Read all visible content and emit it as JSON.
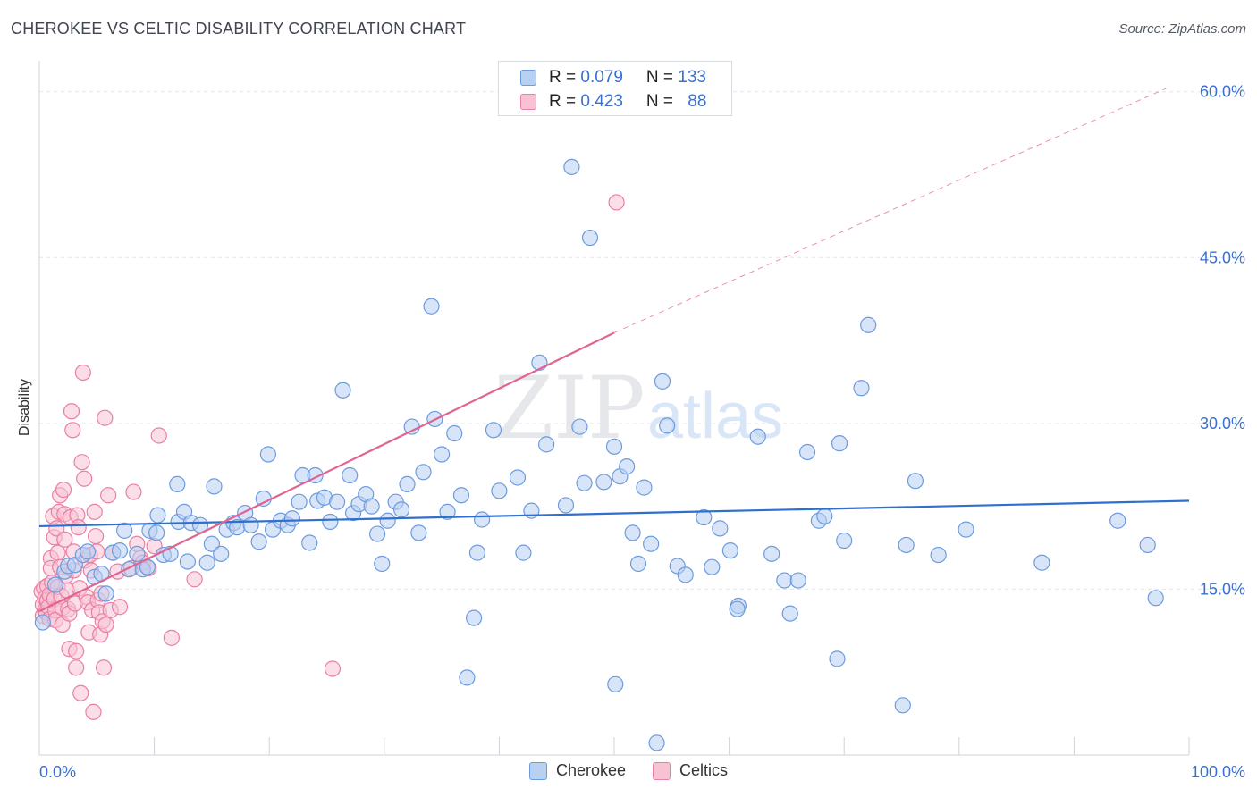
{
  "header": {
    "title": "CHEROKEE VS CELTIC DISABILITY CORRELATION CHART",
    "source": "Source: ZipAtlas.com"
  },
  "watermark": {
    "zip": "ZIP",
    "atlas": "atlas"
  },
  "legend_box": {
    "rows": [
      {
        "r_label": "R = ",
        "r_value": "0.079",
        "n_label": "N = ",
        "n_value": "133"
      },
      {
        "r_label": "R = ",
        "r_value": "0.423",
        "n_label": "N = ",
        "n_value": "88"
      }
    ]
  },
  "colors": {
    "cherokee_fill": "#b8d0f2",
    "cherokee_stroke": "#6c9be0",
    "cherokee_line": "#2f6fce",
    "celtics_fill": "#f7c3d3",
    "celtics_stroke": "#ea7fa4",
    "celtics_line": "#e0648f",
    "axis_label": "#3a6fd0",
    "grid": "#e3e6ea"
  },
  "chart_data": {
    "type": "scatter",
    "title": "CHEROKEE VS CELTIC DISABILITY CORRELATION CHART",
    "xlabel": "",
    "ylabel": "Disability",
    "xlim": [
      0,
      100
    ],
    "ylim": [
      0,
      62
    ],
    "x_tick_labels": [
      "0.0%",
      "100.0%"
    ],
    "y_ticks": [
      15,
      30,
      45,
      60
    ],
    "y_tick_labels": [
      "15.0%",
      "30.0%",
      "45.0%",
      "60.0%"
    ],
    "grid": "horizontal dashed",
    "legend_position": "bottom-center",
    "series": [
      {
        "name": "Cherokee",
        "R": 0.079,
        "N": 133,
        "trend": {
          "x": [
            0,
            100
          ],
          "y": [
            20.7,
            23.0
          ]
        },
        "points": [
          [
            0.3,
            12
          ],
          [
            1.4,
            15.4
          ],
          [
            2.2,
            16.6
          ],
          [
            2.5,
            17.1
          ],
          [
            3.1,
            17.2
          ],
          [
            3.8,
            18.1
          ],
          [
            4.2,
            18.4
          ],
          [
            4.8,
            16.1
          ],
          [
            5.4,
            16.4
          ],
          [
            5.8,
            14.6
          ],
          [
            6.4,
            18.3
          ],
          [
            7,
            18.5
          ],
          [
            7.4,
            20.3
          ],
          [
            7.8,
            16.8
          ],
          [
            8.5,
            18.2
          ],
          [
            9,
            16.8
          ],
          [
            9.4,
            17
          ],
          [
            9.6,
            20.3
          ],
          [
            10.2,
            20.1
          ],
          [
            10.3,
            21.7
          ],
          [
            10.8,
            18.1
          ],
          [
            11.4,
            18.2
          ],
          [
            12,
            24.5
          ],
          [
            12.1,
            21.1
          ],
          [
            12.6,
            22
          ],
          [
            12.9,
            17.5
          ],
          [
            13.2,
            21
          ],
          [
            14,
            20.8
          ],
          [
            14.6,
            17.4
          ],
          [
            15,
            19.1
          ],
          [
            15.2,
            24.3
          ],
          [
            15.8,
            18.2
          ],
          [
            16.3,
            20.4
          ],
          [
            16.9,
            21
          ],
          [
            17.2,
            20.6
          ],
          [
            17.9,
            21.9
          ],
          [
            18.4,
            20.8
          ],
          [
            19.1,
            19.3
          ],
          [
            19.5,
            23.2
          ],
          [
            19.9,
            27.2
          ],
          [
            20.3,
            20.4
          ],
          [
            21,
            21.2
          ],
          [
            21.6,
            20.8
          ],
          [
            22,
            21.4
          ],
          [
            22.6,
            22.9
          ],
          [
            22.9,
            25.3
          ],
          [
            23.5,
            19.2
          ],
          [
            24,
            25.3
          ],
          [
            24.2,
            23
          ],
          [
            24.8,
            23.3
          ],
          [
            25.3,
            21.1
          ],
          [
            25.9,
            22.9
          ],
          [
            26.4,
            33
          ],
          [
            27,
            25.3
          ],
          [
            27.3,
            21.9
          ],
          [
            27.8,
            22.7
          ],
          [
            28.4,
            23.6
          ],
          [
            28.9,
            22.5
          ],
          [
            29.4,
            20
          ],
          [
            29.8,
            17.3
          ],
          [
            30.3,
            21.2
          ],
          [
            31,
            22.9
          ],
          [
            31.5,
            22.2
          ],
          [
            32,
            24.5
          ],
          [
            32.4,
            29.7
          ],
          [
            33,
            20.1
          ],
          [
            33.4,
            25.6
          ],
          [
            34.1,
            40.6
          ],
          [
            34.4,
            30.4
          ],
          [
            35,
            27.2
          ],
          [
            35.5,
            22
          ],
          [
            36.1,
            29.1
          ],
          [
            36.7,
            23.5
          ],
          [
            37.8,
            12.4
          ],
          [
            38.1,
            18.3
          ],
          [
            38.5,
            21.3
          ],
          [
            39.5,
            29.4
          ],
          [
            40,
            23.9
          ],
          [
            41.6,
            25.1
          ],
          [
            42.1,
            18.3
          ],
          [
            42.8,
            22.1
          ],
          [
            43.5,
            35.5
          ],
          [
            44.1,
            28.1
          ],
          [
            45.8,
            22.6
          ],
          [
            46.3,
            53.2
          ],
          [
            47,
            29.7
          ],
          [
            47.4,
            24.6
          ],
          [
            47.9,
            46.8
          ],
          [
            49.1,
            24.7
          ],
          [
            50,
            27.9
          ],
          [
            50.5,
            25.2
          ],
          [
            51.1,
            26.1
          ],
          [
            51.6,
            20.1
          ],
          [
            52.1,
            17.3
          ],
          [
            52.6,
            24.2
          ],
          [
            53.2,
            19.1
          ],
          [
            53.7,
            1.1
          ],
          [
            54.2,
            33.8
          ],
          [
            54.6,
            29.8
          ],
          [
            55.5,
            17.1
          ],
          [
            56.2,
            16.3
          ],
          [
            57.8,
            21.5
          ],
          [
            58.5,
            17
          ],
          [
            59.2,
            20.5
          ],
          [
            60.1,
            18.5
          ],
          [
            60.8,
            13.5
          ],
          [
            62.5,
            28.8
          ],
          [
            63.7,
            18.2
          ],
          [
            64.8,
            15.8
          ],
          [
            65.3,
            12.8
          ],
          [
            66,
            15.8
          ],
          [
            66.8,
            27.4
          ],
          [
            67.8,
            21.2
          ],
          [
            68.3,
            21.6
          ],
          [
            69.4,
            8.7
          ],
          [
            69.6,
            28.2
          ],
          [
            70,
            19.4
          ],
          [
            71.5,
            33.2
          ],
          [
            72.1,
            38.9
          ],
          [
            75.1,
            4.5
          ],
          [
            75.4,
            19
          ],
          [
            76.2,
            24.8
          ],
          [
            78.2,
            18.1
          ],
          [
            80.6,
            20.4
          ],
          [
            87.2,
            17.4
          ],
          [
            93.8,
            21.2
          ],
          [
            96.4,
            19
          ],
          [
            97.1,
            14.2
          ],
          [
            37.2,
            7.0
          ],
          [
            50.1,
            6.4
          ],
          [
            60.7,
            13.2
          ]
        ]
      },
      {
        "name": "Celtics",
        "R": 0.423,
        "N": 88,
        "trend": {
          "x": [
            0,
            50
          ],
          "y": [
            13,
            38.2
          ]
        },
        "trend_extension": {
          "x": [
            50,
            98
          ],
          "y": [
            38.2,
            60.3
          ]
        },
        "points": [
          [
            0.2,
            14.8
          ],
          [
            0.3,
            13.6
          ],
          [
            0.3,
            12.6
          ],
          [
            0.4,
            15.1
          ],
          [
            0.5,
            14.2
          ],
          [
            0.5,
            13.1
          ],
          [
            0.6,
            12.9
          ],
          [
            0.7,
            15.3
          ],
          [
            0.7,
            14.0
          ],
          [
            0.8,
            13.4
          ],
          [
            0.9,
            12.3
          ],
          [
            0.9,
            14.5
          ],
          [
            1.0,
            17.8
          ],
          [
            1.0,
            16.9
          ],
          [
            1.1,
            15.6
          ],
          [
            1.2,
            21.6
          ],
          [
            1.3,
            19.7
          ],
          [
            1.3,
            14.1
          ],
          [
            1.4,
            13.1
          ],
          [
            1.4,
            12.2
          ],
          [
            1.5,
            20.5
          ],
          [
            1.6,
            18.3
          ],
          [
            1.6,
            15.2
          ],
          [
            1.7,
            22.0
          ],
          [
            1.8,
            23.5
          ],
          [
            1.8,
            17.0
          ],
          [
            1.9,
            14.4
          ],
          [
            2.0,
            13.3
          ],
          [
            2.0,
            11.8
          ],
          [
            2.1,
            24.0
          ],
          [
            2.2,
            21.8
          ],
          [
            2.2,
            19.5
          ],
          [
            2.3,
            16.2
          ],
          [
            2.4,
            14.9
          ],
          [
            2.5,
            13.2
          ],
          [
            2.6,
            12.8
          ],
          [
            2.6,
            9.6
          ],
          [
            2.7,
            21.5
          ],
          [
            2.8,
            31.1
          ],
          [
            2.9,
            29.4
          ],
          [
            3.0,
            18.4
          ],
          [
            3.0,
            16.7
          ],
          [
            3.1,
            13.7
          ],
          [
            3.2,
            9.4
          ],
          [
            3.2,
            7.9
          ],
          [
            3.3,
            21.7
          ],
          [
            3.4,
            20.6
          ],
          [
            3.5,
            15.1
          ],
          [
            3.6,
            5.6
          ],
          [
            3.7,
            26.5
          ],
          [
            3.8,
            34.6
          ],
          [
            3.9,
            25.0
          ],
          [
            4.0,
            17.6
          ],
          [
            4.1,
            14.3
          ],
          [
            4.2,
            13.8
          ],
          [
            4.3,
            11.1
          ],
          [
            4.4,
            18.1
          ],
          [
            4.5,
            16.7
          ],
          [
            4.6,
            13.1
          ],
          [
            4.7,
            3.9
          ],
          [
            4.8,
            22.0
          ],
          [
            4.9,
            19.8
          ],
          [
            5.0,
            18.4
          ],
          [
            5.1,
            14.0
          ],
          [
            5.2,
            12.9
          ],
          [
            5.3,
            10.9
          ],
          [
            5.4,
            14.6
          ],
          [
            5.5,
            12.1
          ],
          [
            5.6,
            7.9
          ],
          [
            5.7,
            30.5
          ],
          [
            5.8,
            11.8
          ],
          [
            6.0,
            23.5
          ],
          [
            6.2,
            13.1
          ],
          [
            6.4,
            18.3
          ],
          [
            6.8,
            16.6
          ],
          [
            7.0,
            13.4
          ],
          [
            8.0,
            16.9
          ],
          [
            8.2,
            23.8
          ],
          [
            8.5,
            19.1
          ],
          [
            8.8,
            17.8
          ],
          [
            9.0,
            17.4
          ],
          [
            9.5,
            16.9
          ],
          [
            10.0,
            18.9
          ],
          [
            10.4,
            28.9
          ],
          [
            11.5,
            10.6
          ],
          [
            13.5,
            15.9
          ],
          [
            25.5,
            7.8
          ],
          [
            50.2,
            50.0
          ]
        ]
      }
    ]
  },
  "bottom_legend": {
    "items": [
      "Cherokee",
      "Celtics"
    ]
  }
}
